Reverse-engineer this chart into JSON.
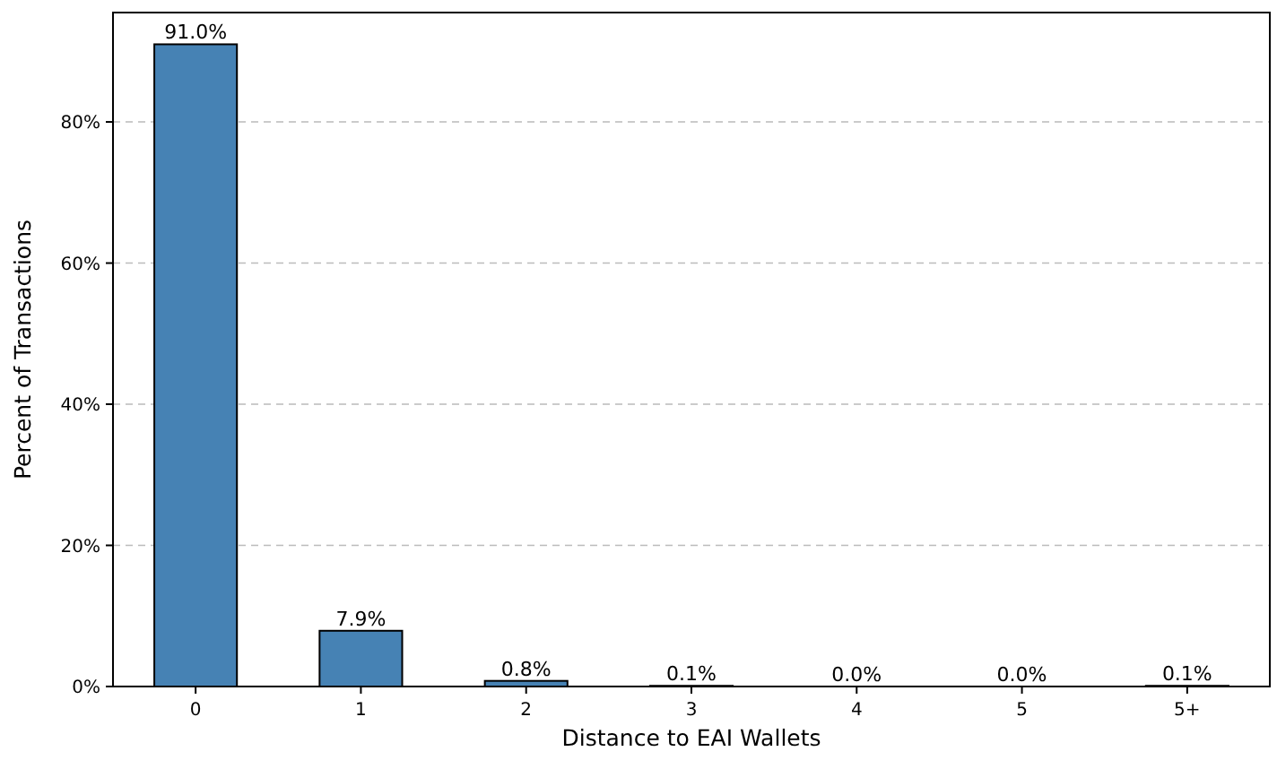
{
  "chart_data": {
    "type": "bar",
    "xlabel": "Distance to EAI Wallets",
    "ylabel": "Percent of Transactions",
    "categories": [
      "0",
      "1",
      "2",
      "3",
      "4",
      "5",
      "5+"
    ],
    "values": [
      91.0,
      7.9,
      0.8,
      0.1,
      0.0,
      0.0,
      0.1
    ],
    "value_labels": [
      "91.0%",
      "7.9%",
      "0.8%",
      "0.1%",
      "0.0%",
      "0.0%",
      "0.1%"
    ],
    "color": "#4682b4",
    "ylim": [
      0,
      95.5
    ],
    "yticks": [
      {
        "value": 0,
        "label": "0%"
      },
      {
        "value": 20,
        "label": "20%"
      },
      {
        "value": 40,
        "label": "40%"
      },
      {
        "value": 60,
        "label": "60%"
      },
      {
        "value": 80,
        "label": "80%"
      }
    ],
    "grid": "y",
    "line_style": "dashed"
  }
}
